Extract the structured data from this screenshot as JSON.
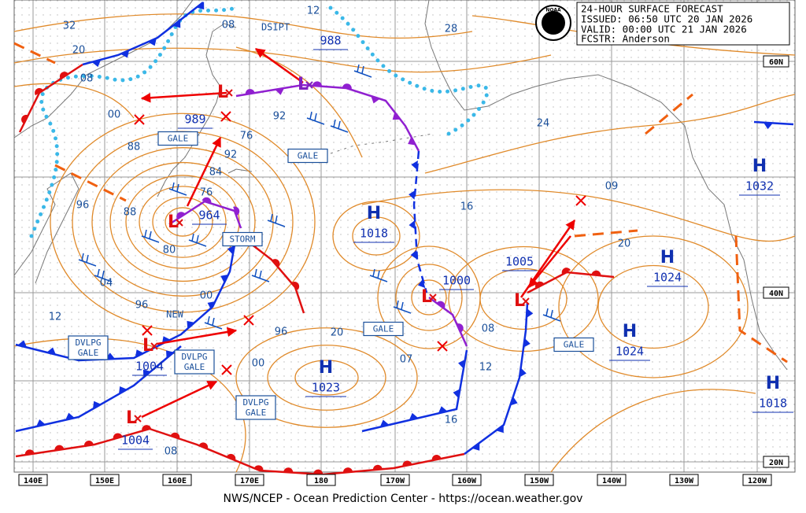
{
  "header": {
    "title": "24-HOUR SURFACE FORECAST",
    "issued": "ISSUED: 06:50 UTC 20 JAN 2026",
    "valid": "VALID:  00:00 UTC 21 JAN 2026",
    "forecaster": "FCSTR:  Anderson"
  },
  "logo": "NOAA",
  "longitude_labels": [
    "140E",
    "150E",
    "160E",
    "170E",
    "180",
    "170W",
    "160W",
    "150W",
    "140W",
    "130W",
    "120W"
  ],
  "latitude_labels": [
    "60N",
    "40N",
    "20N"
  ],
  "highs": [
    {
      "symbol": "H",
      "pressure": "1018"
    },
    {
      "symbol": "H",
      "pressure": "1023"
    },
    {
      "symbol": "H",
      "pressure": "1024"
    },
    {
      "symbol": "H",
      "pressure": "1024"
    },
    {
      "symbol": "H",
      "pressure": "1032"
    },
    {
      "symbol": "H",
      "pressure": "1018"
    }
  ],
  "lows": [
    {
      "symbol": "L",
      "pressure": "964"
    },
    {
      "symbol": "L",
      "pressure": "989"
    },
    {
      "symbol": "L",
      "pressure": "988"
    },
    {
      "symbol": "L",
      "pressure": "1004"
    },
    {
      "symbol": "L",
      "pressure": "1004"
    },
    {
      "symbol": "L",
      "pressure": "1000"
    },
    {
      "symbol": "L",
      "pressure": "1005"
    }
  ],
  "isobar_labels": [
    "32",
    "20",
    "08",
    "00",
    "12",
    "08",
    "28",
    "88",
    "92",
    "76",
    "92",
    "84",
    "76",
    "88",
    "80",
    "96",
    "04",
    "00",
    "96",
    "12",
    "96",
    "00",
    "20",
    "16",
    "24",
    "09",
    "20",
    "08",
    "12",
    "07",
    "16",
    "08"
  ],
  "warnings": [
    [
      "GALE"
    ],
    [
      "GALE"
    ],
    [
      "STORM"
    ],
    [
      "GALE"
    ],
    [
      "GALE"
    ],
    [
      "DVLPG",
      "GALE"
    ],
    [
      "DVLPG",
      "GALE"
    ],
    [
      "DVLPG",
      "GALE"
    ]
  ],
  "notes": [
    "DSIPT",
    "NEW"
  ],
  "footer": "NWS/NCEP - Ocean Prediction Center - https://ocean.weather.gov"
}
